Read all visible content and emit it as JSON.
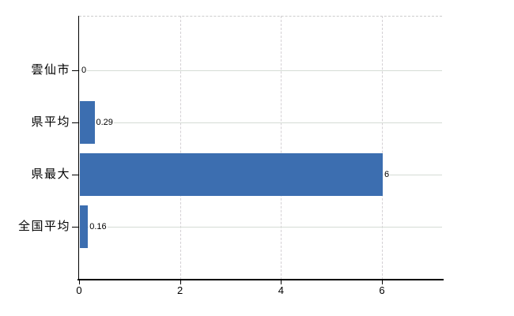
{
  "chart_data": {
    "type": "bar",
    "orientation": "horizontal",
    "categories": [
      "雲仙市",
      "県平均",
      "県最大",
      "全国平均"
    ],
    "values": [
      0,
      0.29,
      6,
      0.16
    ],
    "value_labels": [
      "0",
      "0.29",
      "6",
      "0.16"
    ],
    "x_ticks": [
      0,
      2,
      4,
      6
    ],
    "x_tick_labels": [
      "0",
      "2",
      "4",
      "6"
    ],
    "xlim": [
      0,
      7.2
    ],
    "grid": true,
    "legend": false,
    "title": "",
    "xlabel": "",
    "ylabel": "",
    "colors": {
      "bar": "#3c6eb0",
      "h_gridline": "#d5dcd5",
      "v_gridline": "#d4d0d4",
      "top_border": "#cccccc",
      "axis": "#000000",
      "text": "#000000",
      "background": "#ffffff"
    }
  }
}
